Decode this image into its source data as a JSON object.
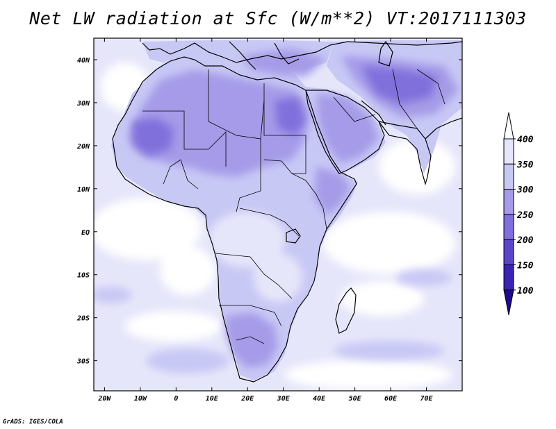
{
  "title": "Net LW radiation at Sfc (W/m**2) VT:2017111303",
  "credit": "GrADS: IGES/COLA",
  "map": {
    "lon_range": [
      -23,
      80
    ],
    "lat_range": [
      -37,
      45
    ],
    "lon_ticks": [
      {
        "value": -20,
        "label": "20W"
      },
      {
        "value": -10,
        "label": "10W"
      },
      {
        "value": 0,
        "label": "0"
      },
      {
        "value": 10,
        "label": "10E"
      },
      {
        "value": 20,
        "label": "20E"
      },
      {
        "value": 30,
        "label": "30E"
      },
      {
        "value": 40,
        "label": "40E"
      },
      {
        "value": 50,
        "label": "50E"
      },
      {
        "value": 60,
        "label": "60E"
      },
      {
        "value": 70,
        "label": "70E"
      }
    ],
    "lat_ticks": [
      {
        "value": 40,
        "label": "40N"
      },
      {
        "value": 30,
        "label": "30N"
      },
      {
        "value": 20,
        "label": "20N"
      },
      {
        "value": 10,
        "label": "10N"
      },
      {
        "value": 0,
        "label": "EQ"
      },
      {
        "value": -10,
        "label": "10S"
      },
      {
        "value": -20,
        "label": "20S"
      },
      {
        "value": -30,
        "label": "30S"
      }
    ]
  },
  "colorbar": {
    "levels": [
      {
        "label": "400",
        "value": 400
      },
      {
        "label": "350",
        "value": 350
      },
      {
        "label": "300",
        "value": 300
      },
      {
        "label": "250",
        "value": 250
      },
      {
        "label": "200",
        "value": 200
      },
      {
        "label": "150",
        "value": 150
      },
      {
        "label": "100",
        "value": 100
      }
    ],
    "colors": [
      "#ffffff",
      "#e6e6fa",
      "#c8c8f5",
      "#a59be8",
      "#8070dc",
      "#5b46cb",
      "#3c23b4",
      "#1e0a8c"
    ]
  },
  "field": {
    "ocean_color": "#ffffff",
    "ocean_light_color": "#e6e6fa",
    "land_light_color": "#c8c8f5",
    "land_mid_color": "#a59be8",
    "land_dark_color": "#8070dc"
  }
}
